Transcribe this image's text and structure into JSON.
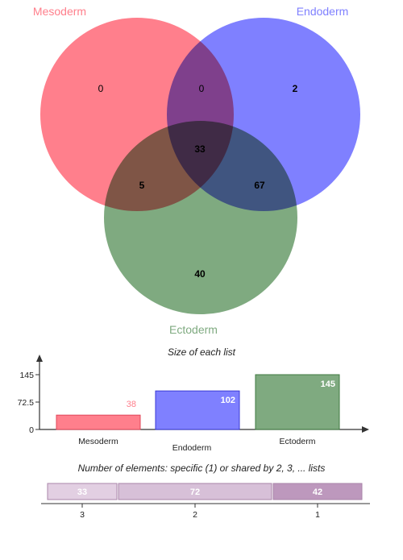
{
  "chart_data": [
    {
      "type": "venn",
      "sets": [
        {
          "name": "Mesoderm",
          "color": "#ff7f8c"
        },
        {
          "name": "Endoderm",
          "color": "#7f80ff"
        },
        {
          "name": "Ectoderm",
          "color": "#7faa80"
        }
      ],
      "regions": [
        {
          "sets": [
            "Mesoderm"
          ],
          "value": 0
        },
        {
          "sets": [
            "Endoderm"
          ],
          "value": 2
        },
        {
          "sets": [
            "Ectoderm"
          ],
          "value": 40
        },
        {
          "sets": [
            "Mesoderm",
            "Endoderm"
          ],
          "value": 0
        },
        {
          "sets": [
            "Mesoderm",
            "Ectoderm"
          ],
          "value": 5
        },
        {
          "sets": [
            "Endoderm",
            "Ectoderm"
          ],
          "value": 67
        },
        {
          "sets": [
            "Mesoderm",
            "Endoderm",
            "Ectoderm"
          ],
          "value": 33
        }
      ]
    },
    {
      "type": "bar",
      "title": "Size of each list",
      "categories": [
        "Mesoderm",
        "Endoderm",
        "Ectoderm"
      ],
      "values": [
        38,
        102,
        145
      ],
      "colors": [
        "#ff7f8c",
        "#7f80ff",
        "#7faa80"
      ],
      "borders": [
        "#e0475a",
        "#3a3ad6",
        "#3f7a40"
      ],
      "label_colors": [
        "#ff7f8c",
        "#ffffff",
        "#ffffff"
      ],
      "yticks": [
        "0",
        "72.5",
        "145"
      ],
      "ylim": [
        0,
        145
      ]
    },
    {
      "type": "stacked_bar",
      "title": "Number of elements: specific (1) or shared by 2, 3, ... lists",
      "segments": [
        {
          "label": "3",
          "value": 33,
          "color": "#e2cfe2"
        },
        {
          "label": "2",
          "value": 72,
          "color": "#d7c0d8"
        },
        {
          "label": "1",
          "value": 42,
          "color": "#bd98bd"
        }
      ]
    }
  ]
}
